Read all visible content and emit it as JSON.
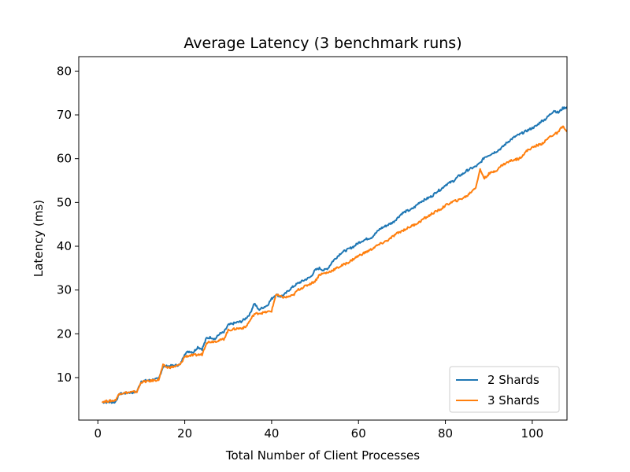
{
  "chart_data": {
    "type": "line",
    "title": "Average Latency (3 benchmark runs)",
    "xlabel": "Total Number of Client Processes",
    "ylabel": "Latency (ms)",
    "xlim": [
      -4.4,
      108
    ],
    "ylim": [
      0.3,
      83.3
    ],
    "xticks": [
      0,
      20,
      40,
      60,
      80,
      100
    ],
    "yticks": [
      10,
      20,
      30,
      40,
      50,
      60,
      70,
      80
    ],
    "grid": false,
    "legend": {
      "placement": "lower-right"
    },
    "series": [
      {
        "name": "2 Shards",
        "color": "#1f77b4",
        "x": [
          1,
          2,
          3,
          4,
          5,
          6,
          7,
          8,
          9,
          10,
          11,
          12,
          13,
          14,
          15,
          16,
          17,
          18,
          19,
          20,
          21,
          22,
          23,
          24,
          25,
          26,
          27,
          28,
          29,
          30,
          31,
          32,
          33,
          34,
          35,
          36,
          37,
          38,
          39,
          40,
          41,
          42,
          43,
          44,
          45,
          46,
          47,
          48,
          49,
          50,
          51,
          52,
          53,
          54,
          55,
          56,
          57,
          58,
          59,
          60,
          61,
          62,
          63,
          64,
          65,
          66,
          67,
          68,
          69,
          70,
          71,
          72,
          73,
          74,
          75,
          76,
          77,
          78,
          79,
          80,
          81,
          82,
          83,
          84,
          85,
          86,
          87,
          88,
          89,
          90,
          91,
          92,
          93,
          94,
          95,
          96,
          97,
          98,
          99,
          100,
          101,
          102,
          103,
          104,
          105,
          106,
          107,
          108
        ],
        "y": [
          4.4,
          4.4,
          4.4,
          4.4,
          6.3,
          6.4,
          6.6,
          6.6,
          6.8,
          9.2,
          9.3,
          9.4,
          9.6,
          9.7,
          12.5,
          12.6,
          12.7,
          12.8,
          13.0,
          15.5,
          16.0,
          15.8,
          17.0,
          16.5,
          19.0,
          19.2,
          18.8,
          20.0,
          20.3,
          22.0,
          22.3,
          22.6,
          22.8,
          23.5,
          24.5,
          27.0,
          25.5,
          26.0,
          26.5,
          28.0,
          29.0,
          28.5,
          29.0,
          30.0,
          30.8,
          31.5,
          32.0,
          32.5,
          33.0,
          34.5,
          35.0,
          34.5,
          35.0,
          36.5,
          37.5,
          38.5,
          39.0,
          39.5,
          40.0,
          40.8,
          41.3,
          41.7,
          42.0,
          43.0,
          44.0,
          44.5,
          45.0,
          45.5,
          46.5,
          47.5,
          48.0,
          48.3,
          49.0,
          50.0,
          50.5,
          51.0,
          51.5,
          52.5,
          53.0,
          54.0,
          54.5,
          55.0,
          56.0,
          56.5,
          57.3,
          57.8,
          58.2,
          59.0,
          60.3,
          60.8,
          61.3,
          61.8,
          62.5,
          63.5,
          64.3,
          65.0,
          65.5,
          66.0,
          66.5,
          67.0,
          67.5,
          68.5,
          69.0,
          70.0,
          71.0,
          70.5,
          71.5,
          71.8
        ]
      },
      {
        "name": "3 Shards",
        "color": "#ff7f0e",
        "x": [
          1,
          2,
          3,
          4,
          5,
          6,
          7,
          8,
          9,
          10,
          11,
          12,
          13,
          14,
          15,
          16,
          17,
          18,
          19,
          20,
          21,
          22,
          23,
          24,
          25,
          26,
          27,
          28,
          29,
          30,
          31,
          32,
          33,
          34,
          35,
          36,
          37,
          38,
          39,
          40,
          41,
          42,
          43,
          44,
          45,
          46,
          47,
          48,
          49,
          50,
          51,
          52,
          53,
          54,
          55,
          56,
          57,
          58,
          59,
          60,
          61,
          62,
          63,
          64,
          65,
          66,
          67,
          68,
          69,
          70,
          71,
          72,
          73,
          74,
          75,
          76,
          77,
          78,
          79,
          80,
          81,
          82,
          83,
          84,
          85,
          86,
          87,
          88,
          89,
          90,
          91,
          92,
          93,
          94,
          95,
          96,
          97,
          98,
          99,
          100,
          101,
          102,
          103,
          104,
          105,
          106,
          107,
          108
        ],
        "y": [
          4.5,
          4.6,
          4.7,
          4.8,
          6.4,
          6.5,
          6.6,
          6.7,
          6.8,
          9.0,
          9.1,
          9.2,
          9.4,
          9.5,
          12.8,
          12.3,
          12.4,
          12.6,
          13.0,
          14.8,
          15.0,
          15.1,
          15.2,
          15.3,
          18.0,
          18.2,
          18.3,
          18.5,
          18.8,
          20.8,
          21.0,
          21.2,
          21.3,
          21.5,
          23.0,
          24.5,
          24.7,
          24.8,
          25.0,
          25.2,
          29.0,
          28.5,
          28.3,
          28.5,
          28.8,
          30.0,
          30.5,
          31.0,
          31.5,
          32.0,
          33.5,
          33.8,
          34.0,
          34.5,
          35.0,
          35.5,
          36.0,
          36.5,
          37.2,
          37.8,
          38.3,
          38.8,
          39.3,
          40.0,
          40.5,
          41.0,
          41.5,
          42.3,
          43.0,
          43.5,
          44.0,
          44.5,
          45.0,
          45.5,
          46.3,
          46.8,
          47.5,
          48.0,
          48.5,
          49.3,
          49.8,
          50.3,
          50.5,
          51.0,
          51.5,
          52.5,
          53.5,
          57.5,
          55.5,
          56.5,
          57.0,
          57.5,
          58.5,
          59.0,
          59.5,
          59.8,
          60.0,
          61.0,
          62.0,
          62.5,
          63.0,
          63.3,
          64.0,
          65.0,
          65.5,
          66.0,
          67.5,
          66.0
        ]
      }
    ]
  }
}
